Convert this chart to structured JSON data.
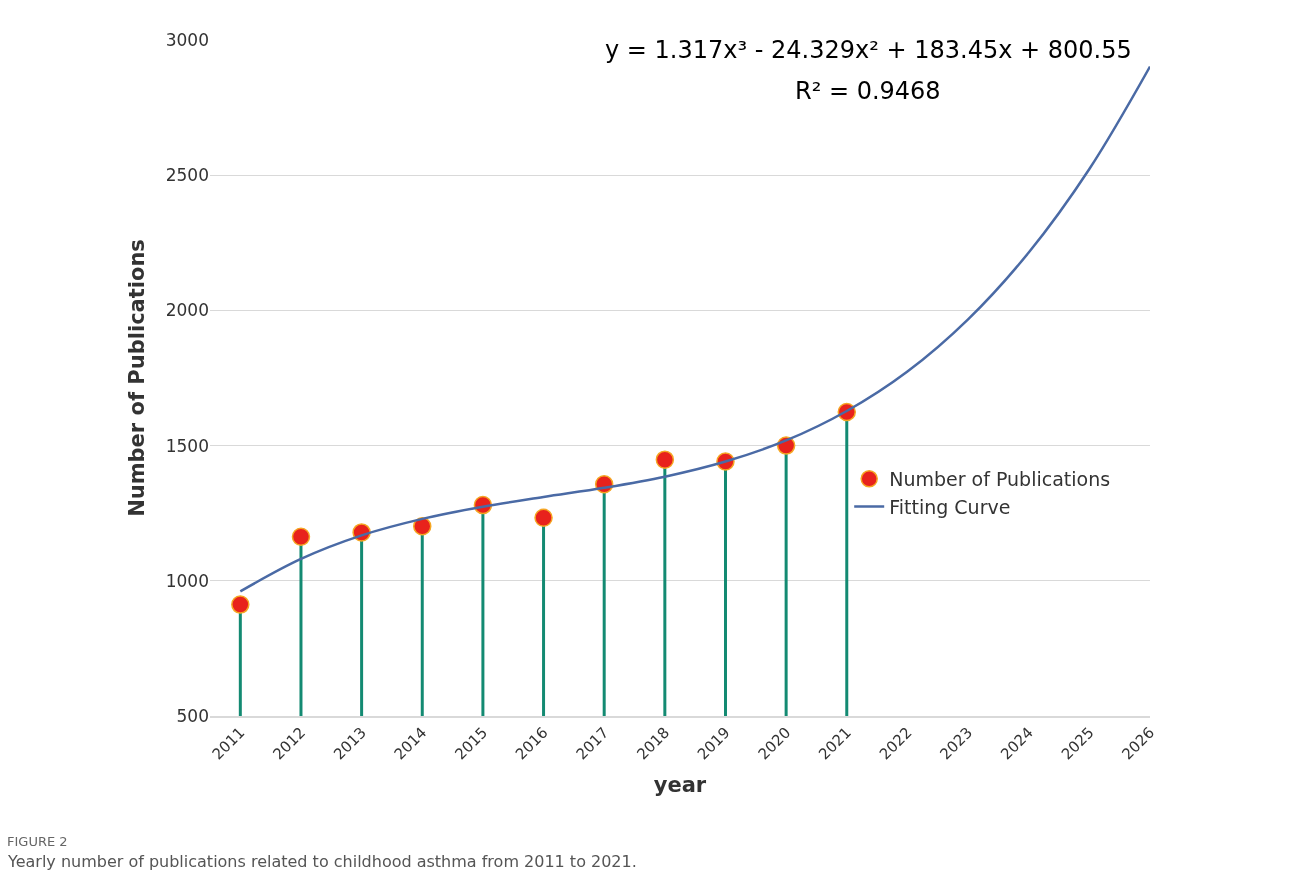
{
  "chart_data": {
    "type": "lollipop",
    "xlabel": "year",
    "ylabel": "Number of Publications",
    "categories": [
      "2011",
      "2012",
      "2013",
      "2014",
      "2015",
      "2016",
      "2017",
      "2018",
      "2019",
      "2020",
      "2021",
      "2022",
      "2023",
      "2024",
      "2025",
      "2026"
    ],
    "series": [
      {
        "name": "Fitting Curve",
        "type": "line",
        "color": "#4a6aa5",
        "marker": "none",
        "line_style": "solid",
        "values": [
          961,
          1081,
          1168,
          1229,
          1274,
          1310,
          1344,
          1385,
          1441,
          1519,
          1628,
          1774,
          1967,
          2214,
          2523,
          2902
        ]
      },
      {
        "name": "Number of Publications",
        "color": "#e8221c",
        "marker": "circle",
        "values": [
          912,
          1163,
          1179,
          1202,
          1280,
          1233,
          1357,
          1448,
          1441,
          1500,
          1624,
          null,
          null,
          null,
          null,
          null
        ]
      }
    ],
    "ylim": [
      500,
      3000
    ],
    "yticks": [
      500,
      1000,
      1500,
      2000,
      2500,
      3000
    ],
    "grid": "y",
    "legend": "right",
    "annotations": [
      "y = 1.317x³ - 24.329x² + 183.45x + 800.55",
      "R² = 0.9468",
      "FIGURE 2",
      "Yearly number of publications related to childhood asthma from 2011 to 2021."
    ]
  }
}
